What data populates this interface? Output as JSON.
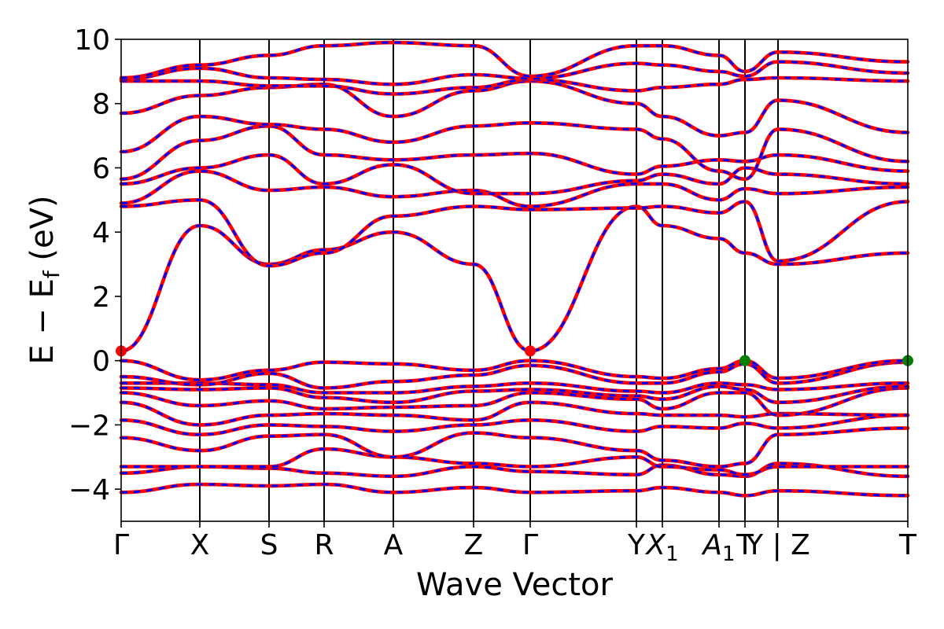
{
  "chart_data": {
    "type": "line",
    "xlabel": "Wave Vector",
    "ylabel_main": "E − E",
    "ylabel_sub": "f",
    "ylabel_unit": " (eV)",
    "ylim": [
      -5,
      10
    ],
    "yticks": [
      -4,
      -2,
      0,
      2,
      4,
      6,
      8,
      10
    ],
    "ytick_labels": [
      "−4",
      "−2",
      "0",
      "2",
      "4",
      "6",
      "8",
      "10"
    ],
    "xlim": [
      0,
      10
    ],
    "kpoints": [
      {
        "x": 0.0,
        "label": "Γ",
        "sub": ""
      },
      {
        "x": 1.0,
        "label": "X",
        "sub": ""
      },
      {
        "x": 1.88,
        "label": "S",
        "sub": ""
      },
      {
        "x": 2.58,
        "label": "R",
        "sub": ""
      },
      {
        "x": 3.46,
        "label": "A",
        "sub": ""
      },
      {
        "x": 4.48,
        "label": "Z",
        "sub": ""
      },
      {
        "x": 5.2,
        "label": "Γ",
        "sub": ""
      },
      {
        "x": 6.55,
        "label": "Y",
        "sub": ""
      },
      {
        "x": 6.88,
        "label": "X",
        "sub": "1"
      },
      {
        "x": 7.6,
        "label": "A",
        "sub": "1"
      },
      {
        "x": 7.93,
        "label": "T",
        "sub": ""
      },
      {
        "x": 8.35,
        "label": "Y | Z",
        "sub": ""
      },
      {
        "x": 10.0,
        "label": "T",
        "sub": ""
      }
    ],
    "series_colors": {
      "band": "#ff0000",
      "overlay": "#0000ff",
      "cbm_marker": "#ff0000",
      "vbm_marker": "#008000"
    },
    "markers": [
      {
        "type": "cbm",
        "x": 0.0,
        "y": 0.3
      },
      {
        "type": "cbm",
        "x": 5.2,
        "y": 0.3
      },
      {
        "type": "vbm",
        "x": 7.93,
        "y": 0.0
      },
      {
        "type": "vbm",
        "x": 10.0,
        "y": 0.0
      }
    ],
    "bands": [
      [
        -4.1,
        -3.85,
        -3.9,
        -3.85,
        -4.1,
        -3.95,
        -4.1,
        -4.05,
        -3.95,
        -4.1,
        -4.2,
        -4.05,
        -4.2
      ],
      [
        -3.5,
        -3.3,
        -3.35,
        -3.5,
        -3.6,
        -3.3,
        -3.45,
        -3.55,
        -3.25,
        -3.55,
        -3.6,
        -3.2,
        -3.6
      ],
      [
        -3.3,
        -3.3,
        -3.3,
        -2.75,
        -3.0,
        -3.2,
        -3.3,
        -3.0,
        -3.3,
        -3.4,
        -3.55,
        -3.3,
        -3.3
      ],
      [
        -2.4,
        -2.8,
        -2.35,
        -2.3,
        -3.0,
        -2.25,
        -2.4,
        -2.8,
        -3.1,
        -3.3,
        -3.2,
        -2.3,
        -2.1
      ],
      [
        -1.85,
        -2.3,
        -2.0,
        -2.05,
        -2.2,
        -2.0,
        -1.85,
        -2.2,
        -2.05,
        -2.1,
        -1.95,
        -2.1,
        -1.7
      ],
      [
        -1.3,
        -2.0,
        -1.7,
        -1.65,
        -1.7,
        -1.85,
        -1.3,
        -1.65,
        -1.7,
        -1.7,
        -1.75,
        -1.65,
        -1.7
      ],
      [
        -1.0,
        -1.4,
        -1.25,
        -1.5,
        -1.45,
        -1.4,
        -1.0,
        -1.2,
        -1.5,
        -1.0,
        -1.0,
        -1.7,
        -0.85
      ],
      [
        -0.85,
        -0.9,
        -0.85,
        -1.15,
        -1.3,
        -0.95,
        -0.9,
        -1.1,
        -1.2,
        -0.8,
        -0.9,
        -1.3,
        -0.8
      ],
      [
        -0.7,
        -0.7,
        -0.75,
        -1.0,
        -1.0,
        -0.8,
        -0.7,
        -0.95,
        -1.0,
        -0.7,
        -0.75,
        -0.9,
        -0.7
      ],
      [
        -0.5,
        -0.75,
        -0.4,
        -0.85,
        -0.65,
        -0.45,
        -0.15,
        -0.7,
        -0.7,
        -0.35,
        -0.1,
        -0.7,
        -0.05
      ],
      [
        0.0,
        -0.6,
        -0.3,
        -0.05,
        -0.1,
        -0.3,
        0.0,
        -0.5,
        -0.55,
        -0.25,
        0.0,
        -0.55,
        0.0
      ],
      [
        0.3,
        4.2,
        3.0,
        3.45,
        4.0,
        3.0,
        0.3,
        4.8,
        4.2,
        3.8,
        3.35,
        3.0,
        3.35
      ],
      [
        4.8,
        5.0,
        2.95,
        3.35,
        4.5,
        4.8,
        4.7,
        4.75,
        4.8,
        4.6,
        4.95,
        3.1,
        4.95
      ],
      [
        4.9,
        5.9,
        5.3,
        5.4,
        5.1,
        5.3,
        4.8,
        5.5,
        5.5,
        5.0,
        5.35,
        5.2,
        5.4
      ],
      [
        5.5,
        6.0,
        6.4,
        5.5,
        6.1,
        5.2,
        5.2,
        5.6,
        5.8,
        5.5,
        6.0,
        5.8,
        5.5
      ],
      [
        5.65,
        6.85,
        7.3,
        6.4,
        6.25,
        6.4,
        6.45,
        5.8,
        6.05,
        6.25,
        6.2,
        6.4,
        5.9
      ],
      [
        6.5,
        7.6,
        7.35,
        7.2,
        6.8,
        7.3,
        7.4,
        7.2,
        6.9,
        5.9,
        5.65,
        7.2,
        6.2
      ],
      [
        7.7,
        8.25,
        8.5,
        8.6,
        7.6,
        8.4,
        8.7,
        8.0,
        7.6,
        7.0,
        7.1,
        8.1,
        7.1
      ],
      [
        8.7,
        8.7,
        8.55,
        8.55,
        8.3,
        8.5,
        8.75,
        8.4,
        8.5,
        8.6,
        8.75,
        8.8,
        8.7
      ],
      [
        8.75,
        9.1,
        8.8,
        8.75,
        8.6,
        8.9,
        8.78,
        9.25,
        9.2,
        9.0,
        8.85,
        9.3,
        8.95
      ],
      [
        8.8,
        9.2,
        9.5,
        9.8,
        9.9,
        9.8,
        8.85,
        9.8,
        9.8,
        9.5,
        9.0,
        9.6,
        9.3
      ]
    ]
  }
}
